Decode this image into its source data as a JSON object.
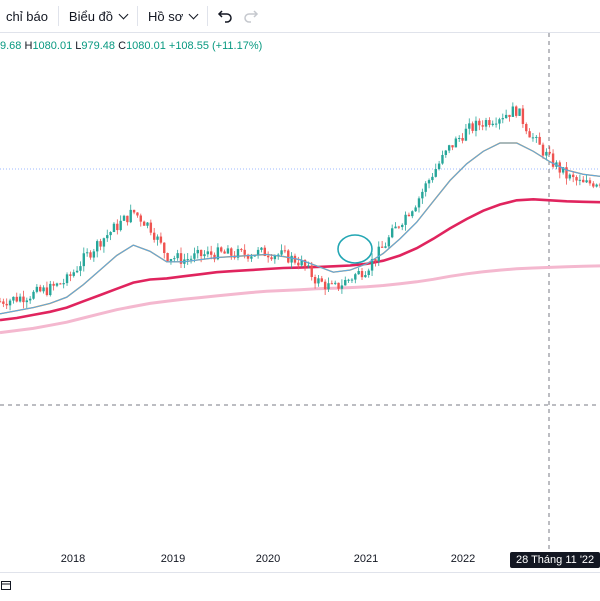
{
  "toolbar": {
    "indicators_label": "Chỉ báo",
    "indicators_visible_text": "chỉ báo",
    "chart_label": "Biểu đồ",
    "profile_label": "Hồ sơ",
    "undo_icon": "undo-icon",
    "redo_icon": "redo-icon"
  },
  "ohlc": {
    "open_partial": "9.68",
    "high_label": "H",
    "high_value": "1080.01",
    "low_label": "L",
    "low_value": "979.48",
    "close_label": "C",
    "close_value": "1080.01",
    "change": "+108.55 (+11.17%)"
  },
  "crosshair": {
    "date_label": "28 Tháng 11 '22"
  },
  "colors": {
    "up": "#26a69a",
    "down": "#ef5350",
    "ma_blue": "#5aa9e6",
    "ma_orange": "#f7931e",
    "ma_red": "#e0245e",
    "ma_pink": "#f4b8cf",
    "annotation": "#22a6b3"
  },
  "chart_data": {
    "type": "line",
    "x_ticks": [
      "2018",
      "2019",
      "2020",
      "2021",
      "2022"
    ],
    "x_range": [
      "2017-01",
      "2023-06"
    ],
    "series": [
      {
        "values": [
          500,
          515,
          535,
          560,
          600,
          700,
          790,
          860,
          930,
          860,
          720,
          700,
          720,
          730,
          725,
          730,
          735,
          720,
          690,
          600,
          560,
          610,
          660,
          760,
          880,
          980,
          1120,
          1240,
          1320,
          1360,
          1390,
          1420,
          1280,
          1180,
          1100,
          1060,
          1080
        ]
      },
      {
        "values": [
          440,
          455,
          470,
          490,
          520,
          580,
          650,
          720,
          770,
          740,
          690,
          690,
          700,
          710,
          715,
          720,
          725,
          715,
          700,
          670,
          640,
          650,
          680,
          730,
          800,
          880,
          980,
          1080,
          1160,
          1220,
          1260,
          1260,
          1220,
          1170,
          1130,
          1110,
          1100
        ]
      },
      {
        "values": [
          410,
          420,
          435,
          450,
          470,
          500,
          530,
          560,
          590,
          605,
          610,
          620,
          630,
          640,
          645,
          650,
          655,
          660,
          662,
          665,
          668,
          672,
          680,
          695,
          720,
          755,
          800,
          850,
          895,
          935,
          965,
          985,
          990,
          985,
          980,
          978,
          976
        ]
      },
      {
        "values": [
          350,
          360,
          370,
          385,
          400,
          420,
          440,
          460,
          475,
          490,
          500,
          510,
          518,
          526,
          534,
          542,
          548,
          552,
          556,
          560,
          563,
          566,
          570,
          576,
          584,
          594,
          606,
          620,
          632,
          642,
          650,
          656,
          660,
          663,
          666,
          668,
          670
        ]
      }
    ],
    "candles_visible": true,
    "annotation": "ellipse"
  }
}
